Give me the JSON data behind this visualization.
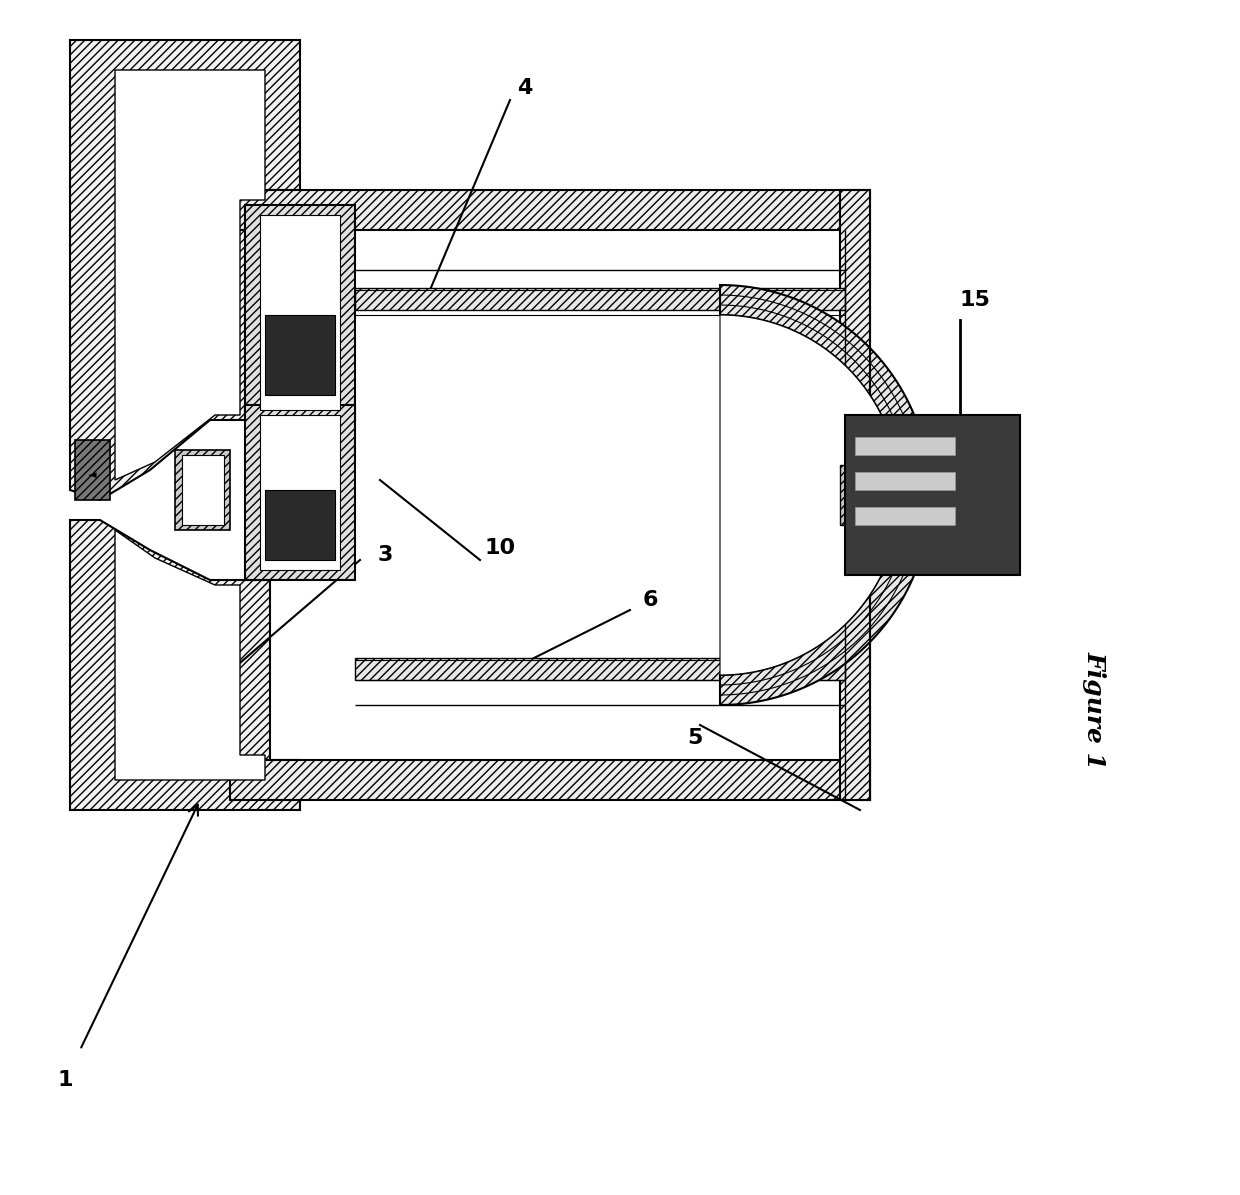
{
  "bg_color": "#ffffff",
  "figure_label": "Figure 1",
  "label_fontsize": 16,
  "caption_fontsize": 18,
  "lw": 1.5,
  "lw2": 2.0,
  "hatch_color": "#aaaaaa"
}
